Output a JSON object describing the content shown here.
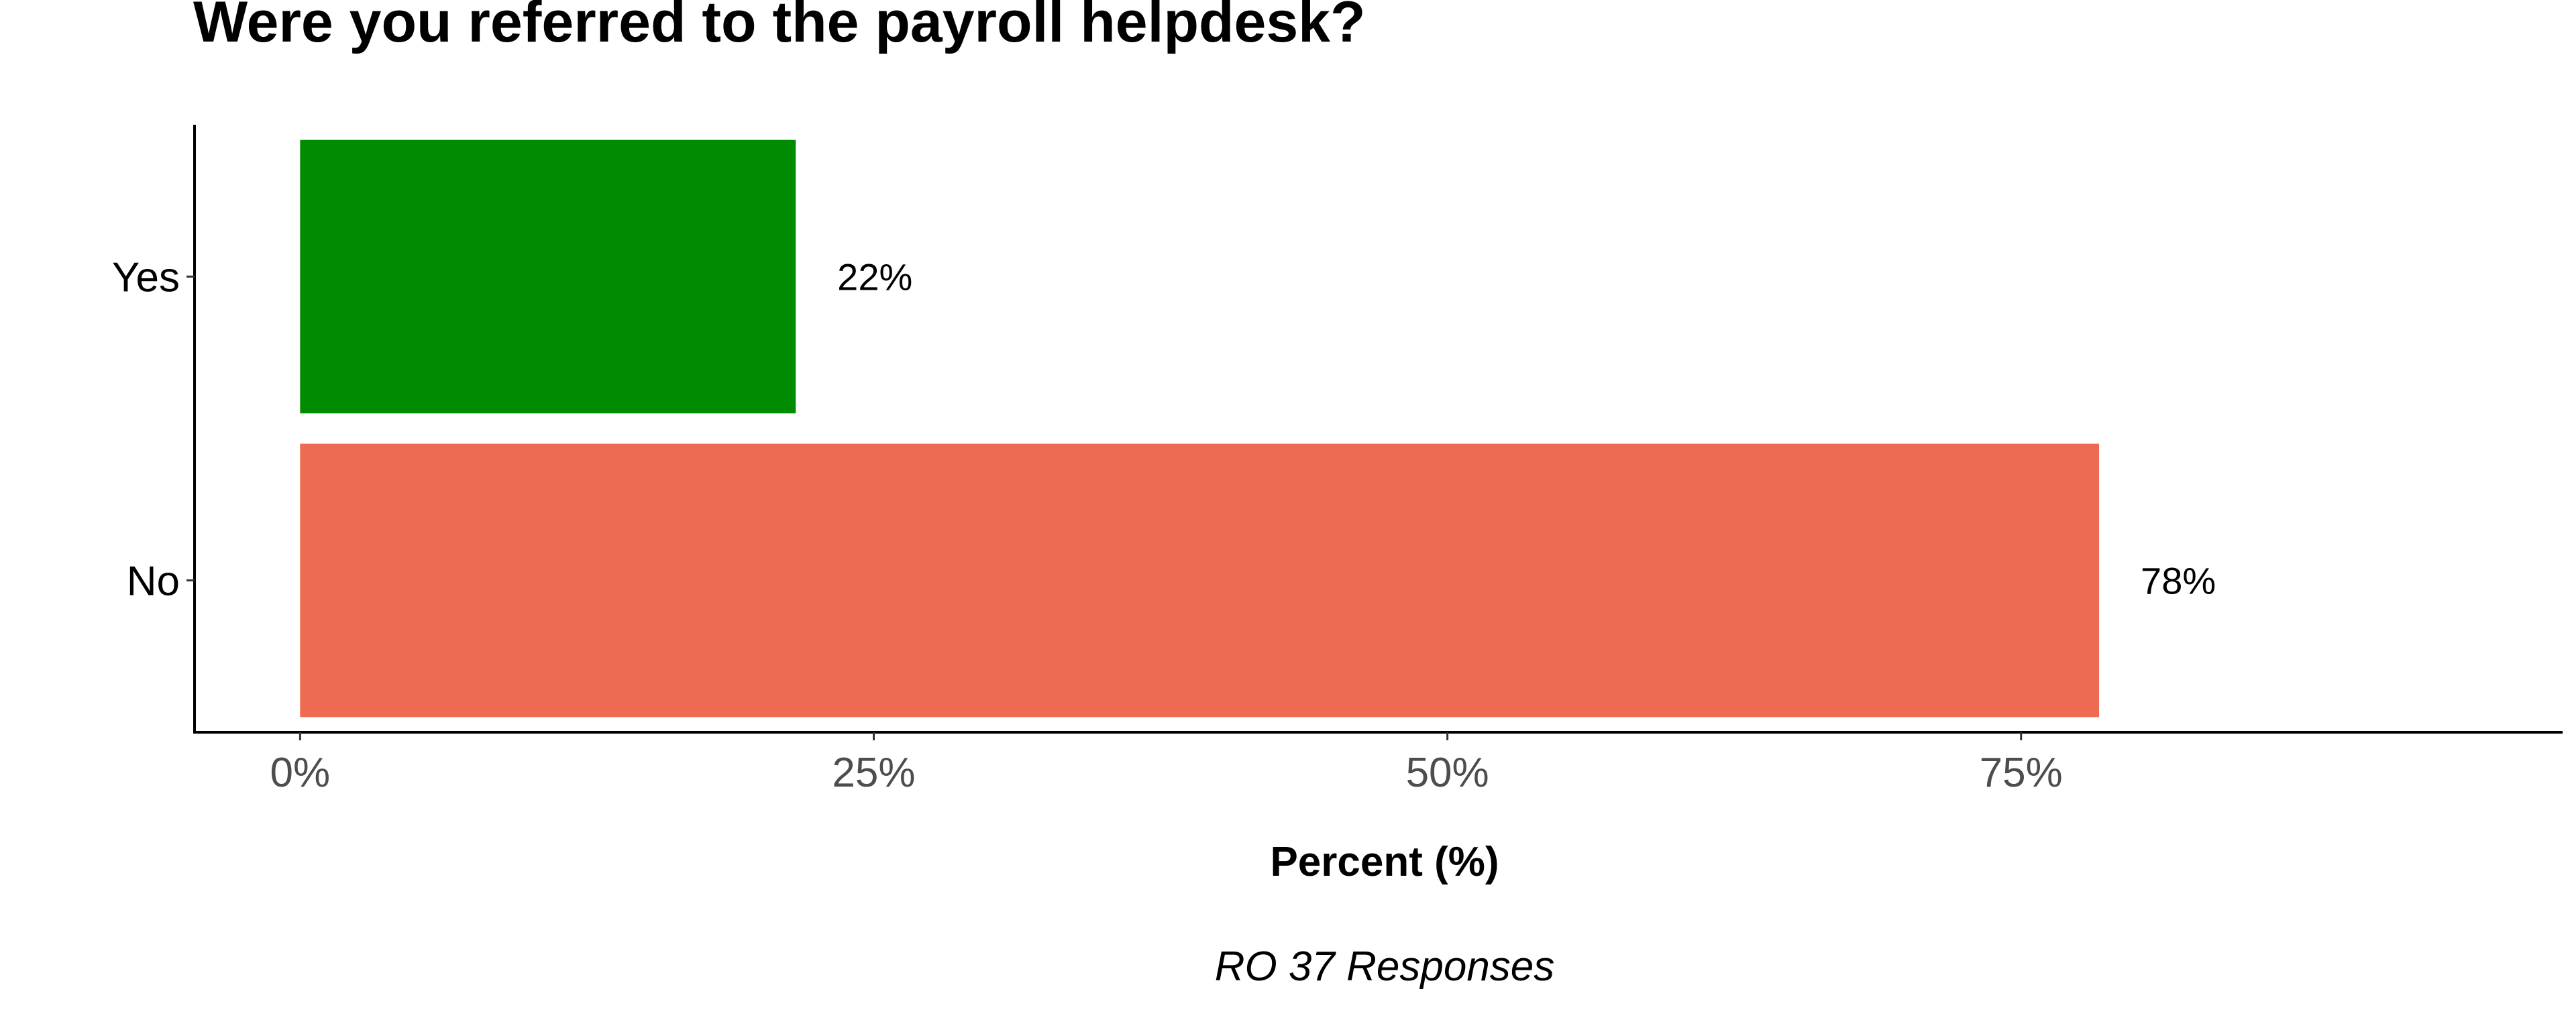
{
  "chart_data": {
    "type": "bar",
    "orientation": "horizontal",
    "title": "Were you referred to the payroll helpdesk?",
    "categories": [
      "Yes",
      "No"
    ],
    "values": [
      21.6,
      78.4
    ],
    "value_labels": [
      "22%",
      "78%"
    ],
    "colors": [
      "#008b00",
      "#ee6a50"
    ],
    "xlabel": "Percent (%)",
    "xlim": [
      -4.6,
      98.6
    ],
    "x_ticks": [
      0,
      25,
      50,
      75
    ],
    "x_tick_labels": [
      "0%",
      "25%",
      "50%",
      "75%"
    ],
    "caption": "RO 37 Responses",
    "grid": false,
    "legend": "none"
  }
}
